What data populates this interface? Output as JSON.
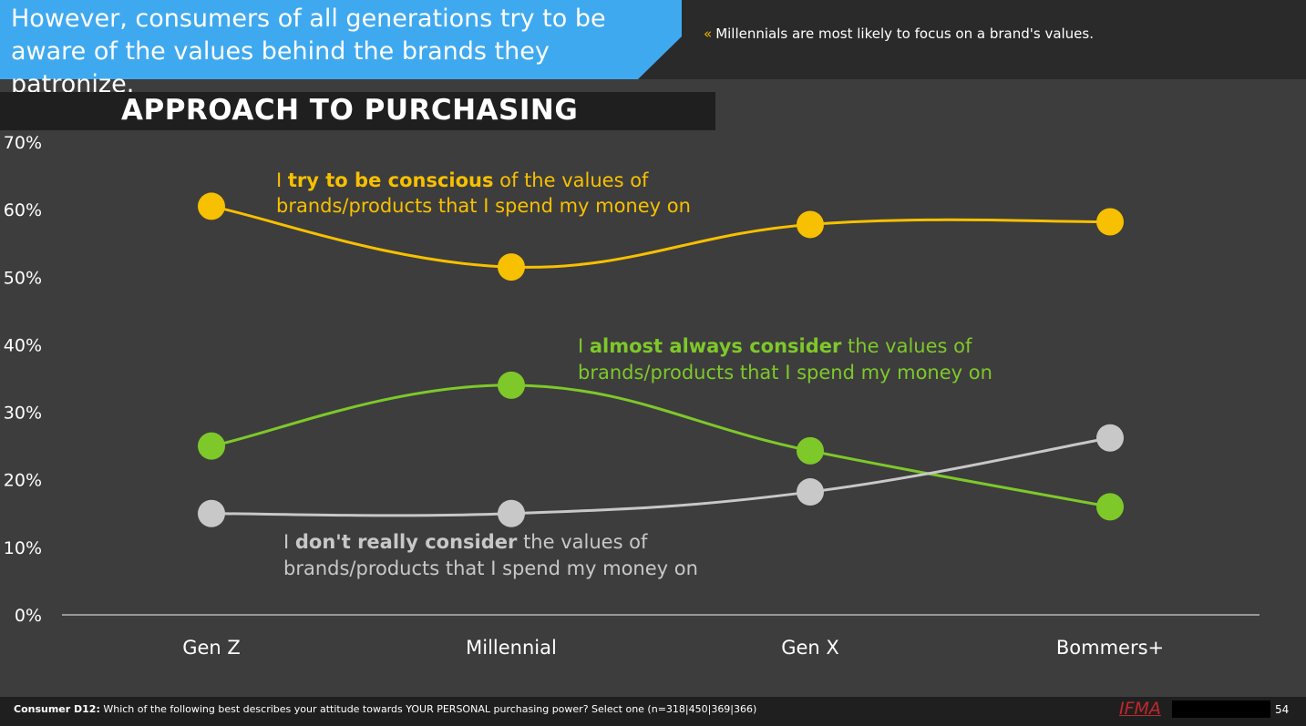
{
  "slide": {
    "headline": "However, consumers of all generations try to be aware of the values behind the brands they patronize.",
    "subnote_marker": "«",
    "subnote": "Millennials are most likely to focus on a brand's values.",
    "footer_label": "Consumer D12:",
    "footer_question": "Which of the following best describes your attitude towards YOUR PERSONAL purchasing power? Select one (n=318|450|369|366)",
    "logo_text": "IFMA",
    "page_number": "54"
  },
  "colors": {
    "header_blue": "#3fa9f0",
    "series_yellow": "#f7c000",
    "series_green": "#7ec82a",
    "series_gray": "#c8c8c8",
    "background": "#3d3d3d"
  },
  "chart_data": {
    "type": "line",
    "title": "APPROACH TO PURCHASING",
    "categories": [
      "Gen Z",
      "Millennial",
      "Gen X",
      "Bommers+"
    ],
    "ylim": [
      0,
      70
    ],
    "yticks": [
      "0%",
      "10%",
      "20%",
      "30%",
      "40%",
      "50%",
      "60%",
      "70%"
    ],
    "grid": false,
    "series": [
      {
        "color": "#f7c000",
        "values": [
          60.5,
          51.5,
          57.8,
          58.2
        ],
        "label_pre": "I ",
        "label_bold": "try to be conscious",
        "label_post": " of the values of",
        "label_line2": "brands/products that I spend my money on"
      },
      {
        "color": "#7ec82a",
        "values": [
          25.0,
          34.0,
          24.3,
          16.0
        ],
        "label_pre": "I ",
        "label_bold": "almost always consider",
        "label_post": " the values of",
        "label_line2": "brands/products that I spend my money on"
      },
      {
        "color": "#c8c8c8",
        "values": [
          15.0,
          15.0,
          18.2,
          26.2
        ],
        "label_pre": "I ",
        "label_bold": "don't really consider",
        "label_post": " the values of",
        "label_line2": "brands/products that I spend my money on"
      }
    ]
  }
}
